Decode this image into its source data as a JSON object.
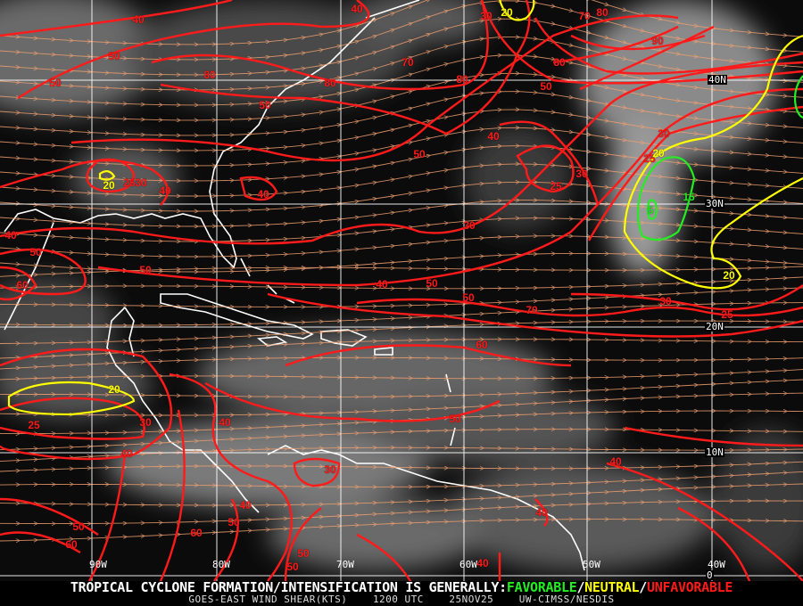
{
  "map": {
    "title": "GOES-EAST WIND SHEAR(KTS)",
    "time": "1200 UTC",
    "date": "25NOV25",
    "source": "UW-CIMSS/NESDIS",
    "headline_prefix": "TROPICAL CYCLONE FORMATION/INTENSIFICATION IS GENERALLY:",
    "favorable": "FAVORABLE",
    "neutral": "NEUTRAL",
    "unfavorable": "UNFAVORABLE",
    "sep": "/",
    "colors": {
      "favorable": "#22ee22",
      "neutral": "#ffff00",
      "unfavorable": "#ff1a1a",
      "streamlines": "#f0a070",
      "grid": "#ffffff",
      "coast": "#ffffff"
    },
    "lat_labels": [
      "40N",
      "30N",
      "20N",
      "10N",
      "0"
    ],
    "lon_labels": [
      "90W",
      "80W",
      "70W",
      "60W",
      "50W",
      "40W"
    ],
    "contour_labels": [
      "40",
      "40",
      "50",
      "50",
      "30",
      "20",
      "70",
      "80",
      "90",
      "80",
      "50",
      "80",
      "70",
      "80",
      "80",
      "50",
      "40",
      "50",
      "30",
      "25",
      "20",
      "15",
      "5",
      "20",
      "30",
      "25",
      "30",
      "25",
      "20",
      "25",
      "30",
      "40",
      "40",
      "30",
      "40",
      "50",
      "50",
      "60",
      "40",
      "50",
      "50",
      "70",
      "60",
      "20",
      "25",
      "30",
      "40",
      "50",
      "40",
      "30",
      "40",
      "40",
      "50",
      "50",
      "60",
      "60",
      "50",
      "50",
      "40",
      "40"
    ]
  }
}
